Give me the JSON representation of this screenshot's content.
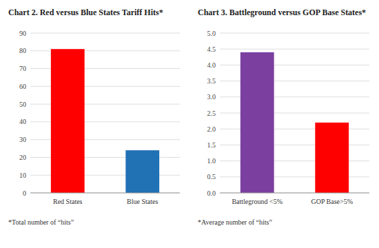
{
  "chart_data": [
    {
      "type": "bar",
      "title": "Chart 2. Red versus Blue States Tariff Hits*",
      "categories": [
        "Red States",
        "Blue States"
      ],
      "values": [
        81,
        24
      ],
      "colors": [
        "#ff0000",
        "#2171b5"
      ],
      "ylim": [
        0,
        90
      ],
      "yticks": [
        0,
        10,
        20,
        30,
        40,
        50,
        60,
        70,
        80,
        90
      ],
      "grid": true,
      "annotations": [
        "*Total number of “hits”"
      ]
    },
    {
      "type": "bar",
      "title": "Chart 3. Battleground versus GOP Base States*",
      "categories": [
        "Battleground <5%",
        "GOP Base>5%"
      ],
      "values": [
        4.4,
        2.2
      ],
      "colors": [
        "#7b3fa0",
        "#ff0000"
      ],
      "ylim": [
        0,
        5
      ],
      "yticks": [
        {
          "value": 0,
          "label": "0.0"
        },
        0.5,
        {
          "value": 1.0,
          "label": "1.0"
        },
        1.5,
        {
          "value": 2.0,
          "label": "2.0"
        },
        2.5,
        {
          "value": 3.0,
          "label": "3.0"
        },
        3.5,
        {
          "value": 4.0,
          "label": "4.0"
        },
        4.5,
        {
          "value": 5.0,
          "label": "5.0"
        }
      ],
      "grid": true,
      "annotations": [
        "*Average number of “hits”"
      ]
    }
  ]
}
